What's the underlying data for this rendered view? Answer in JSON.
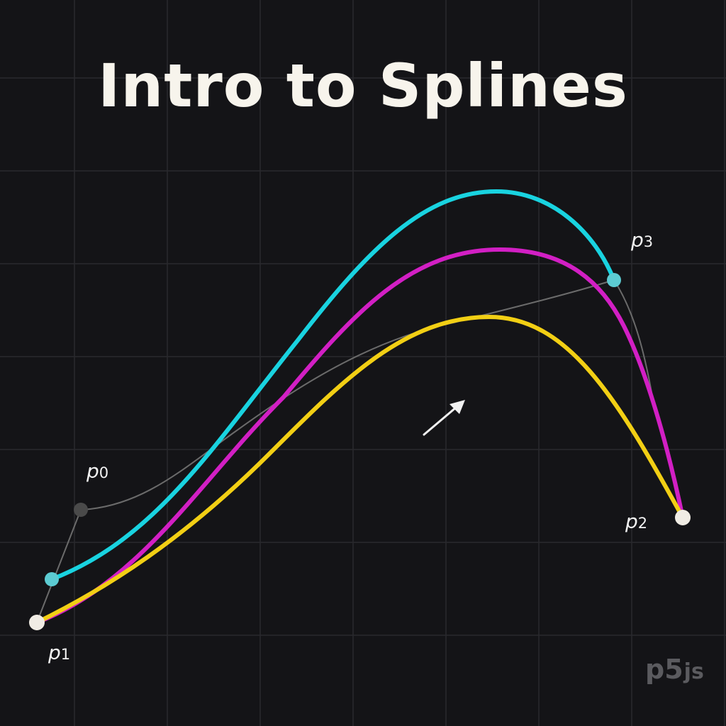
{
  "title": "Intro to Splines",
  "points": [
    {
      "id": "p0",
      "letter": "p",
      "sub": "0"
    },
    {
      "id": "p1",
      "letter": "p",
      "sub": "1"
    },
    {
      "id": "p2",
      "letter": "p",
      "sub": "2"
    },
    {
      "id": "p3",
      "letter": "p",
      "sub": "3"
    }
  ],
  "curves": [
    {
      "name": "cyan",
      "color": "#19d3e0"
    },
    {
      "name": "magenta",
      "color": "#d21fc4"
    },
    {
      "name": "yellow",
      "color": "#f2cf14"
    }
  ],
  "colors": {
    "background": "#141417",
    "grid": "#2a2a2e",
    "control_polygon": "#6b6b6b",
    "title": "#f7f4ec",
    "endpoint": "#f0ece4",
    "control_point_p0": "#4a4a4a",
    "control_point_cyan": "#5ccbd2"
  },
  "annotations": {
    "arrow": "direction-arrow"
  },
  "watermark": {
    "brand": "p5",
    "suffix": "js"
  }
}
